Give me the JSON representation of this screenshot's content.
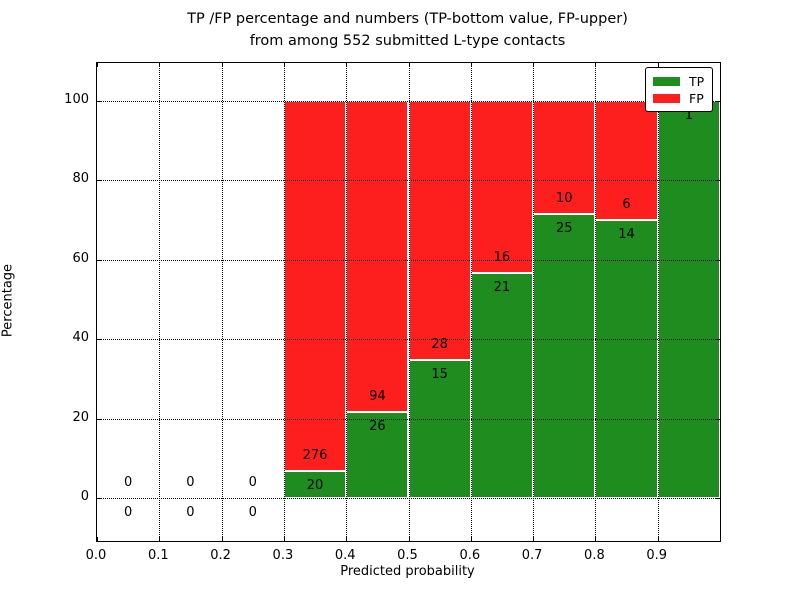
{
  "chart_data": {
    "type": "bar",
    "stacked_percentage": true,
    "title_line1": "TP /FP percentage and numbers (TP-bottom value, FP-upper)",
    "title_line2": "from among 552 submitted L-type contacts",
    "xlabel": "Predicted probability",
    "ylabel": "Percentage",
    "x_ticks": [
      "0.0",
      "0.1",
      "0.2",
      "0.3",
      "0.4",
      "0.5",
      "0.6",
      "0.7",
      "0.8",
      "0.9"
    ],
    "y_ticks": [
      "0",
      "20",
      "40",
      "60",
      "80",
      "100"
    ],
    "xlim": [
      0.0,
      1.0
    ],
    "ylim": [
      -11,
      110
    ],
    "grid": true,
    "bin_width": 0.1,
    "legend_position": "upper right",
    "series": [
      {
        "name": "TP",
        "color": "#1e8c1e",
        "counts": [
          0,
          0,
          0,
          20,
          26,
          15,
          21,
          25,
          14,
          1
        ]
      },
      {
        "name": "FP",
        "color": "#fd1e1e",
        "counts": [
          0,
          0,
          0,
          276,
          94,
          28,
          16,
          10,
          6,
          0
        ]
      }
    ]
  }
}
